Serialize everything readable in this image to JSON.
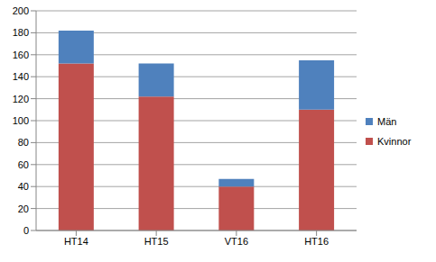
{
  "chart_data": {
    "type": "bar",
    "categories": [
      "HT14",
      "HT15",
      "VT16",
      "HT16"
    ],
    "series": [
      {
        "name": "Kvinnor",
        "color": "#C0504D",
        "values": [
          152,
          122,
          40,
          110
        ]
      },
      {
        "name": "Män",
        "color": "#4F81BD",
        "values": [
          30,
          30,
          7,
          45
        ]
      }
    ],
    "ylim": [
      0,
      200
    ],
    "yticks": [
      0,
      20,
      40,
      60,
      80,
      100,
      120,
      140,
      160,
      180,
      200
    ],
    "grid": true,
    "stacked": true,
    "legend": "right"
  }
}
